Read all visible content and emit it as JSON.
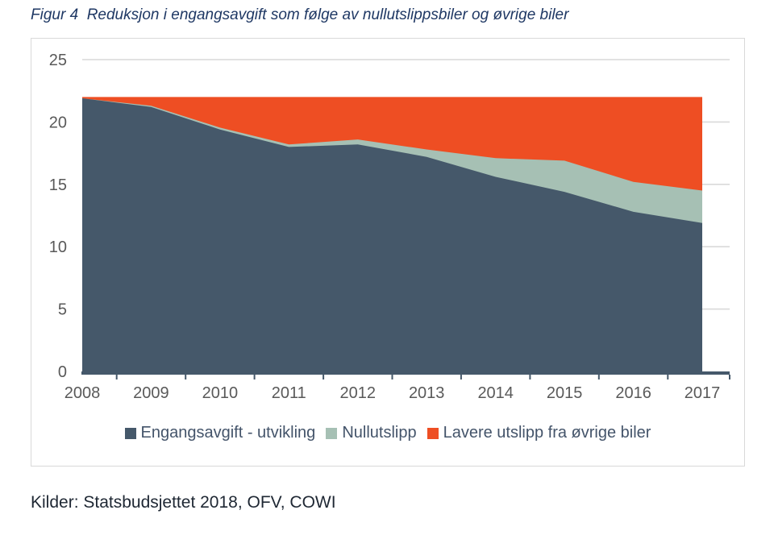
{
  "title": "Figur 4  Reduksjon i engangsavgift som følge av nullutslippsbiler og øvrige biler",
  "source": "Kilder: Statsbudsjettet 2018, OFV, COWI",
  "chart_data": {
    "type": "area",
    "stacked": true,
    "title": "Reduksjon i engangsavgift som følge av nullutslippsbiler og øvrige biler",
    "x": [
      "2008",
      "2009",
      "2010",
      "2011",
      "2012",
      "2013",
      "2014",
      "2015",
      "2016",
      "2017"
    ],
    "series": [
      {
        "name": "Engangsavgift - utvikling",
        "color": "#45586A",
        "values": [
          21.9,
          21.2,
          19.4,
          18.0,
          18.2,
          17.2,
          15.6,
          14.4,
          12.8,
          11.9
        ]
      },
      {
        "name": "Nullutslipp",
        "color": "#A6C0B4",
        "values": [
          0.0,
          0.1,
          0.15,
          0.2,
          0.4,
          0.6,
          1.5,
          2.5,
          2.4,
          2.6
        ]
      },
      {
        "name": "Lavere utslipp fra øvrige biler",
        "color": "#EE4E23",
        "values": [
          0.1,
          0.7,
          2.45,
          3.8,
          3.4,
          4.2,
          4.9,
          5.1,
          6.8,
          7.5
        ]
      }
    ],
    "stack_total": 22,
    "xlabel": "",
    "ylabel": "",
    "ylim": [
      0,
      25
    ],
    "yticks": [
      0,
      5,
      10,
      15,
      20,
      25
    ],
    "grid": "horizontal",
    "legend_position": "bottom",
    "colors": {
      "grid": "#D9D9D9",
      "axis_line": "#45586A",
      "tick_label": "#595959",
      "legend_text": "#44546A"
    }
  }
}
